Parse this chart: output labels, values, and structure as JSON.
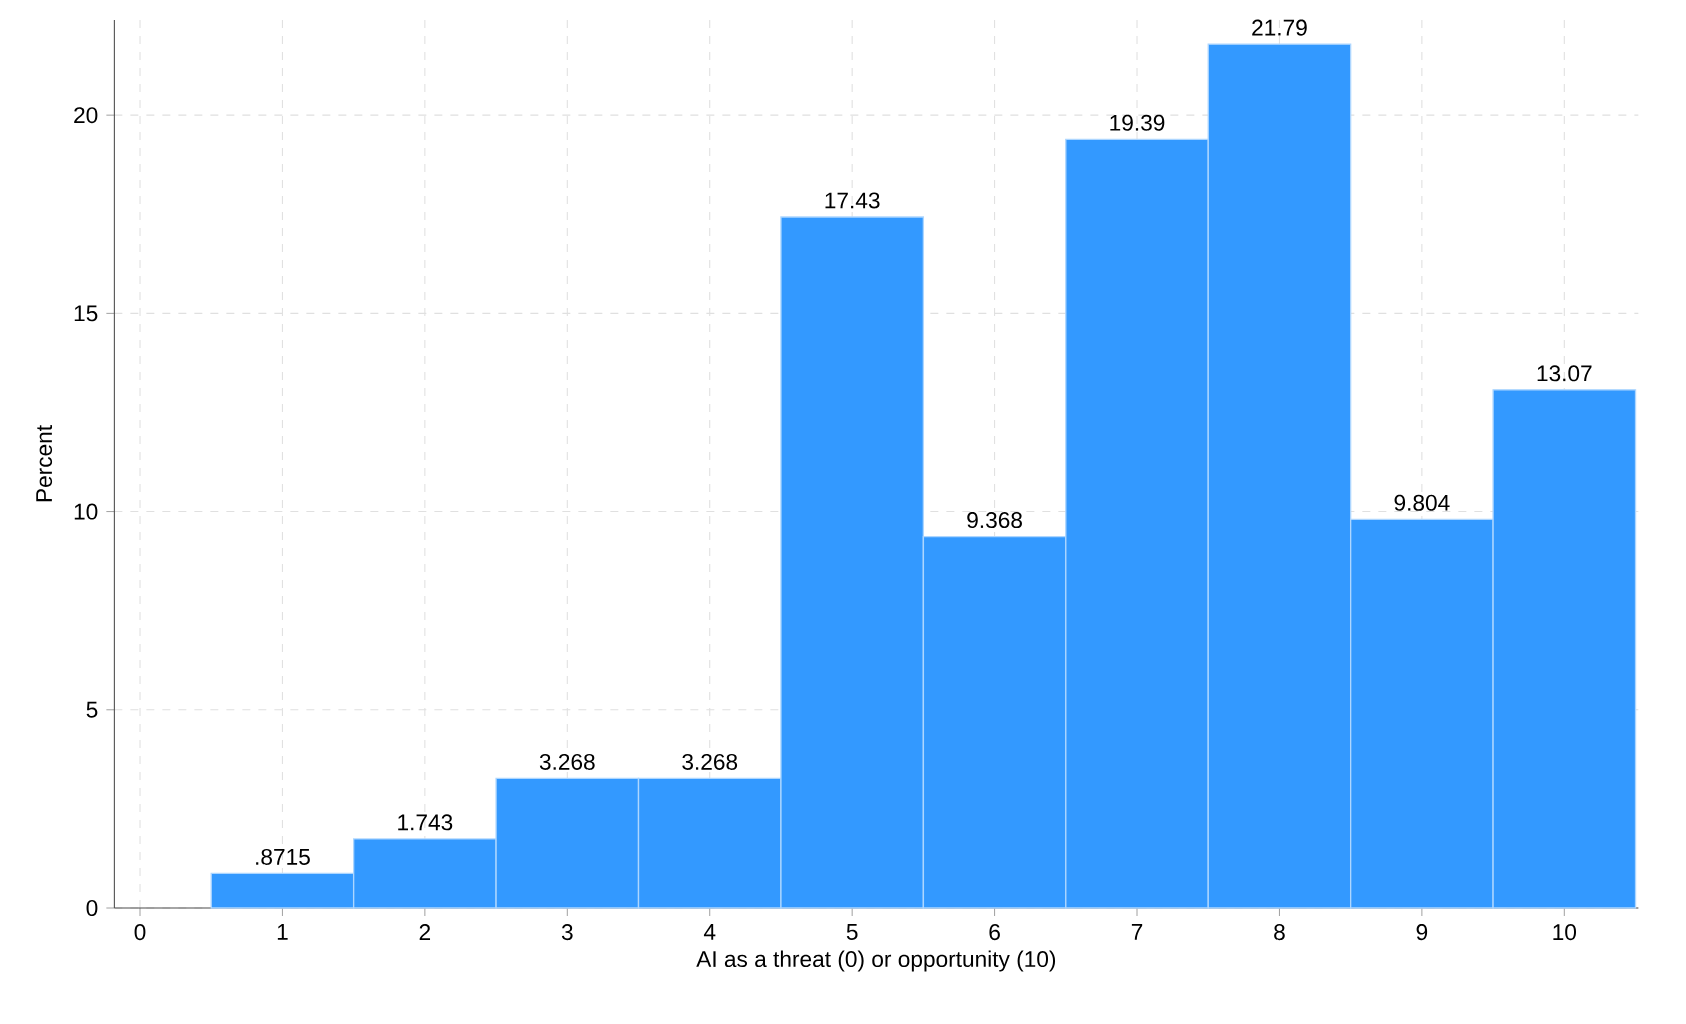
{
  "chart_data": {
    "type": "histogram",
    "xlabel": "AI as a threat (0) or opportunity (10)",
    "ylabel": "Percent",
    "bins": [
      0.5,
      1.5,
      2.5,
      3.5,
      4.5,
      5.5,
      6.5,
      7.5,
      8.5,
      9.5,
      10.5
    ],
    "values": [
      0.8715,
      1.743,
      3.268,
      3.268,
      17.43,
      9.368,
      19.39,
      21.79,
      9.804,
      13.07
    ],
    "value_labels": [
      ".8715",
      "1.743",
      "3.268",
      "3.268",
      "17.43",
      "9.368",
      "19.39",
      "21.79",
      "9.804",
      "13.07"
    ],
    "color": "#3399ff",
    "xlim": [
      -0.18,
      10.52
    ],
    "ylim": [
      0,
      22.4
    ],
    "xticks": [
      0,
      1,
      2,
      3,
      4,
      5,
      6,
      7,
      8,
      9,
      10
    ],
    "yticks": [
      0,
      5,
      10,
      15,
      20
    ],
    "grid": true
  }
}
